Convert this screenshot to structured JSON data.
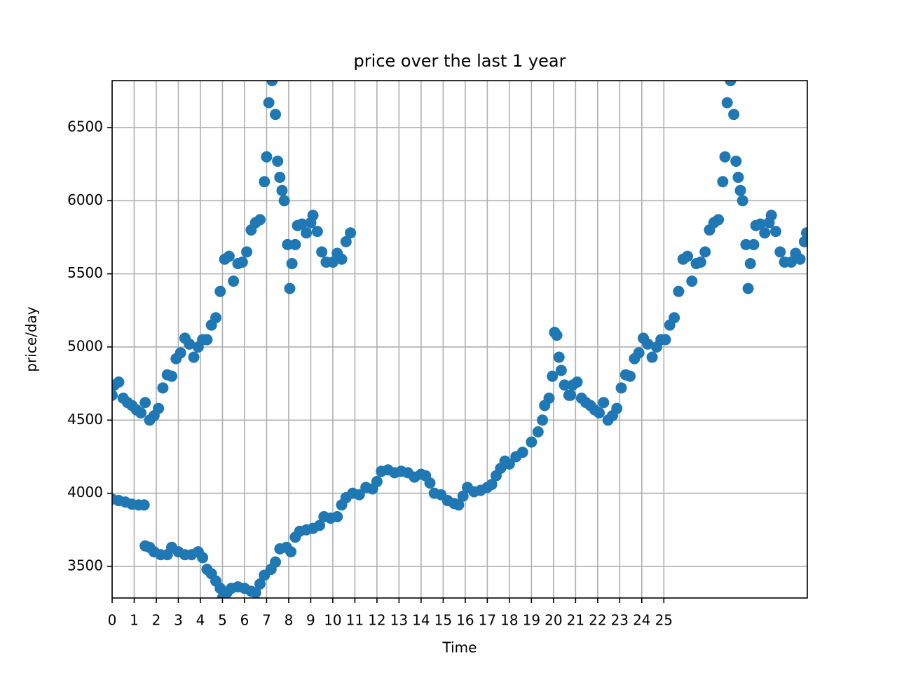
{
  "chart_data": {
    "type": "scatter",
    "title": "price over the last 1 year",
    "x_label": "Time",
    "y_label": "price/day",
    "xlim": [
      0,
      31.5
    ],
    "ylim": [
      3284,
      6821
    ],
    "xticks": [
      0,
      1,
      2,
      3,
      4,
      5,
      6,
      7,
      8,
      9,
      10,
      11,
      12,
      13,
      14,
      15,
      16,
      17,
      18,
      19,
      20,
      21,
      22,
      23,
      24,
      25
    ],
    "yticks": [
      3500,
      4000,
      4500,
      5000,
      5500,
      6000,
      6500
    ],
    "grid": true,
    "series": [
      {
        "color": "#1f77b4",
        "x": [
          0,
          0.1,
          0.3,
          0.5,
          0.7,
          0.9,
          1.1,
          1.3,
          1.5,
          1.7,
          1.9,
          2.1,
          2.3,
          2.5,
          2.7,
          2.9,
          3.1,
          3.3,
          3.5,
          3.7,
          3.9,
          4.1,
          4.3,
          4.5,
          4.7,
          4.9,
          5.1,
          5.3,
          5.5,
          5.7,
          5.9,
          6.1,
          6.3,
          6.5,
          6.7,
          6.9,
          7.0,
          7.1,
          7.25,
          7.4,
          7.5,
          7.6,
          7.7,
          7.8,
          7.95,
          8.05,
          8.15,
          8.3,
          8.4,
          8.6,
          8.8,
          9.0,
          9.1,
          9.3,
          9.5,
          9.7,
          10.0,
          10.2,
          10.4,
          10.6,
          10.8
        ],
        "values": [
          4670,
          4740,
          4760,
          4650,
          4620,
          4600,
          4570,
          4550,
          4620,
          4500,
          4530,
          4580,
          4720,
          4810,
          4800,
          4920,
          4960,
          5060,
          5020,
          4930,
          5000,
          5050,
          5050,
          5150,
          5200,
          5380,
          5600,
          5620,
          5450,
          5570,
          5580,
          5650,
          5800,
          5850,
          5870,
          6130,
          6300,
          6670,
          6821,
          6590,
          6270,
          6160,
          6070,
          6000,
          5700,
          5400,
          5570,
          5700,
          5830,
          5840,
          5780,
          5850,
          5900,
          5790,
          5650,
          5580,
          5580,
          5640,
          5600,
          5720,
          5780
        ]
      },
      {
        "color": "#1f77b4",
        "x": [
          0,
          0.3,
          0.6,
          0.9,
          1.2,
          1.45,
          1.5,
          1.7,
          1.9,
          2.2,
          2.5,
          2.7,
          3.0,
          3.3,
          3.6,
          3.9,
          4.1,
          4.3,
          4.5,
          4.7,
          4.9,
          5.0,
          5.2,
          5.4,
          5.7,
          6.0,
          6.3,
          6.5,
          6.7,
          6.9,
          7.2,
          7.4,
          7.6,
          7.9,
          8.1,
          8.3,
          8.5,
          8.8,
          9.1,
          9.4,
          9.6,
          9.9,
          10.2,
          10.4,
          10.6,
          10.9,
          11.2,
          11.5,
          11.8,
          12.0,
          12.2,
          12.5,
          12.8,
          13.1,
          13.4,
          13.7,
          14.0,
          14.2,
          14.4,
          14.6,
          14.9,
          15.2,
          15.5,
          15.7,
          15.9,
          16.1,
          16.4,
          16.7,
          17.0,
          17.2,
          17.4,
          17.6,
          17.8,
          18.0,
          18.3,
          18.6,
          19.0,
          19.3,
          19.5,
          19.6,
          19.8,
          19.95,
          20.05,
          20.15,
          20.25,
          20.35,
          20.5,
          20.7,
          20.77,
          20.87,
          21.07,
          21.27,
          21.47,
          21.67,
          21.87,
          22.07,
          22.27,
          22.47,
          22.67,
          22.87,
          23.07,
          23.27,
          23.47,
          23.67,
          23.87,
          24.07,
          24.27,
          24.47,
          24.67,
          24.87,
          25.07,
          25.27,
          25.47,
          25.67,
          25.87,
          26.07,
          26.27,
          26.47,
          26.67,
          26.87,
          27.07,
          27.27,
          27.47,
          27.67,
          27.77,
          27.87,
          28.02,
          28.17,
          28.27,
          28.37,
          28.47,
          28.57,
          28.72,
          28.82,
          28.92,
          29.07,
          29.17,
          29.37,
          29.57,
          29.77,
          29.87,
          30.07,
          30.27,
          30.47,
          30.77,
          30.97,
          31.17,
          31.37,
          31.47
        ],
        "values": [
          3960,
          3950,
          3940,
          3925,
          3920,
          3920,
          3640,
          3630,
          3600,
          3580,
          3580,
          3630,
          3600,
          3580,
          3580,
          3600,
          3560,
          3480,
          3450,
          3400,
          3350,
          3284,
          3320,
          3350,
          3360,
          3350,
          3330,
          3320,
          3380,
          3440,
          3480,
          3530,
          3620,
          3630,
          3600,
          3700,
          3740,
          3750,
          3760,
          3780,
          3840,
          3830,
          3840,
          3920,
          3970,
          4000,
          3990,
          4040,
          4030,
          4080,
          4150,
          4160,
          4140,
          4150,
          4140,
          4110,
          4130,
          4120,
          4070,
          4000,
          3990,
          3950,
          3930,
          3920,
          3980,
          4040,
          4010,
          4020,
          4040,
          4060,
          4120,
          4170,
          4220,
          4200,
          4250,
          4280,
          4350,
          4420,
          4500,
          4600,
          4650,
          4800,
          5100,
          5080,
          4930,
          4840,
          4740,
          4670,
          4670,
          4740,
          4760,
          4650,
          4620,
          4600,
          4570,
          4550,
          4620,
          4500,
          4530,
          4580,
          4720,
          4810,
          4800,
          4920,
          4960,
          5060,
          5020,
          4930,
          5000,
          5050,
          5050,
          5150,
          5200,
          5380,
          5600,
          5620,
          5450,
          5570,
          5580,
          5650,
          5800,
          5850,
          5870,
          6130,
          6300,
          6670,
          6821,
          6590,
          6270,
          6160,
          6070,
          6000,
          5700,
          5400,
          5570,
          5700,
          5830,
          5840,
          5780,
          5850,
          5900,
          5790,
          5650,
          5580,
          5580,
          5640,
          5600,
          5720,
          5780
        ]
      }
    ]
  }
}
